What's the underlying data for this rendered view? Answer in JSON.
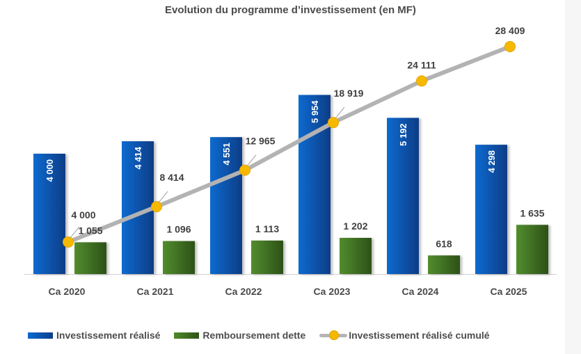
{
  "chart_data": {
    "type": "bar",
    "title": "Evolution du programme d’investissement (en MF)",
    "xlabel": "",
    "ylabel": "",
    "grid": false,
    "legend_position": "bottom",
    "categories": [
      "Ca 2020",
      "Ca 2021",
      "Ca 2022",
      "Ca 2023",
      "Ca 2024",
      "Ca 2025"
    ],
    "series": [
      {
        "name": "Investissement réalisé",
        "kind": "bar",
        "axis": "secondary",
        "color": "#0a5fc0",
        "values": [
          4000,
          4414,
          4551,
          5954,
          5192,
          4298
        ],
        "labels": [
          "4 000",
          "4 414",
          "4 551",
          "5 954",
          "5 192",
          "4 298"
        ]
      },
      {
        "name": "Remboursement dette",
        "kind": "bar",
        "axis": "secondary",
        "color": "#3f7424",
        "values": [
          1055,
          1096,
          1113,
          1202,
          618,
          1635
        ],
        "labels": [
          "1 055",
          "1 096",
          "1 113",
          "1 202",
          "618",
          "1 635"
        ]
      },
      {
        "name": "Investissement réalisé cumulé",
        "kind": "line",
        "axis": "primary",
        "color": "#b5b5b5",
        "marker_color": "#f5b800",
        "values": [
          4000,
          8414,
          12965,
          18919,
          24111,
          28409
        ],
        "labels": [
          "4 000",
          "8 414",
          "12 965",
          "18 919",
          "24 111",
          "28 409"
        ]
      }
    ],
    "ylim_primary": [
      0,
      34000
    ],
    "ylim_secondary": [
      0,
      9000
    ]
  }
}
